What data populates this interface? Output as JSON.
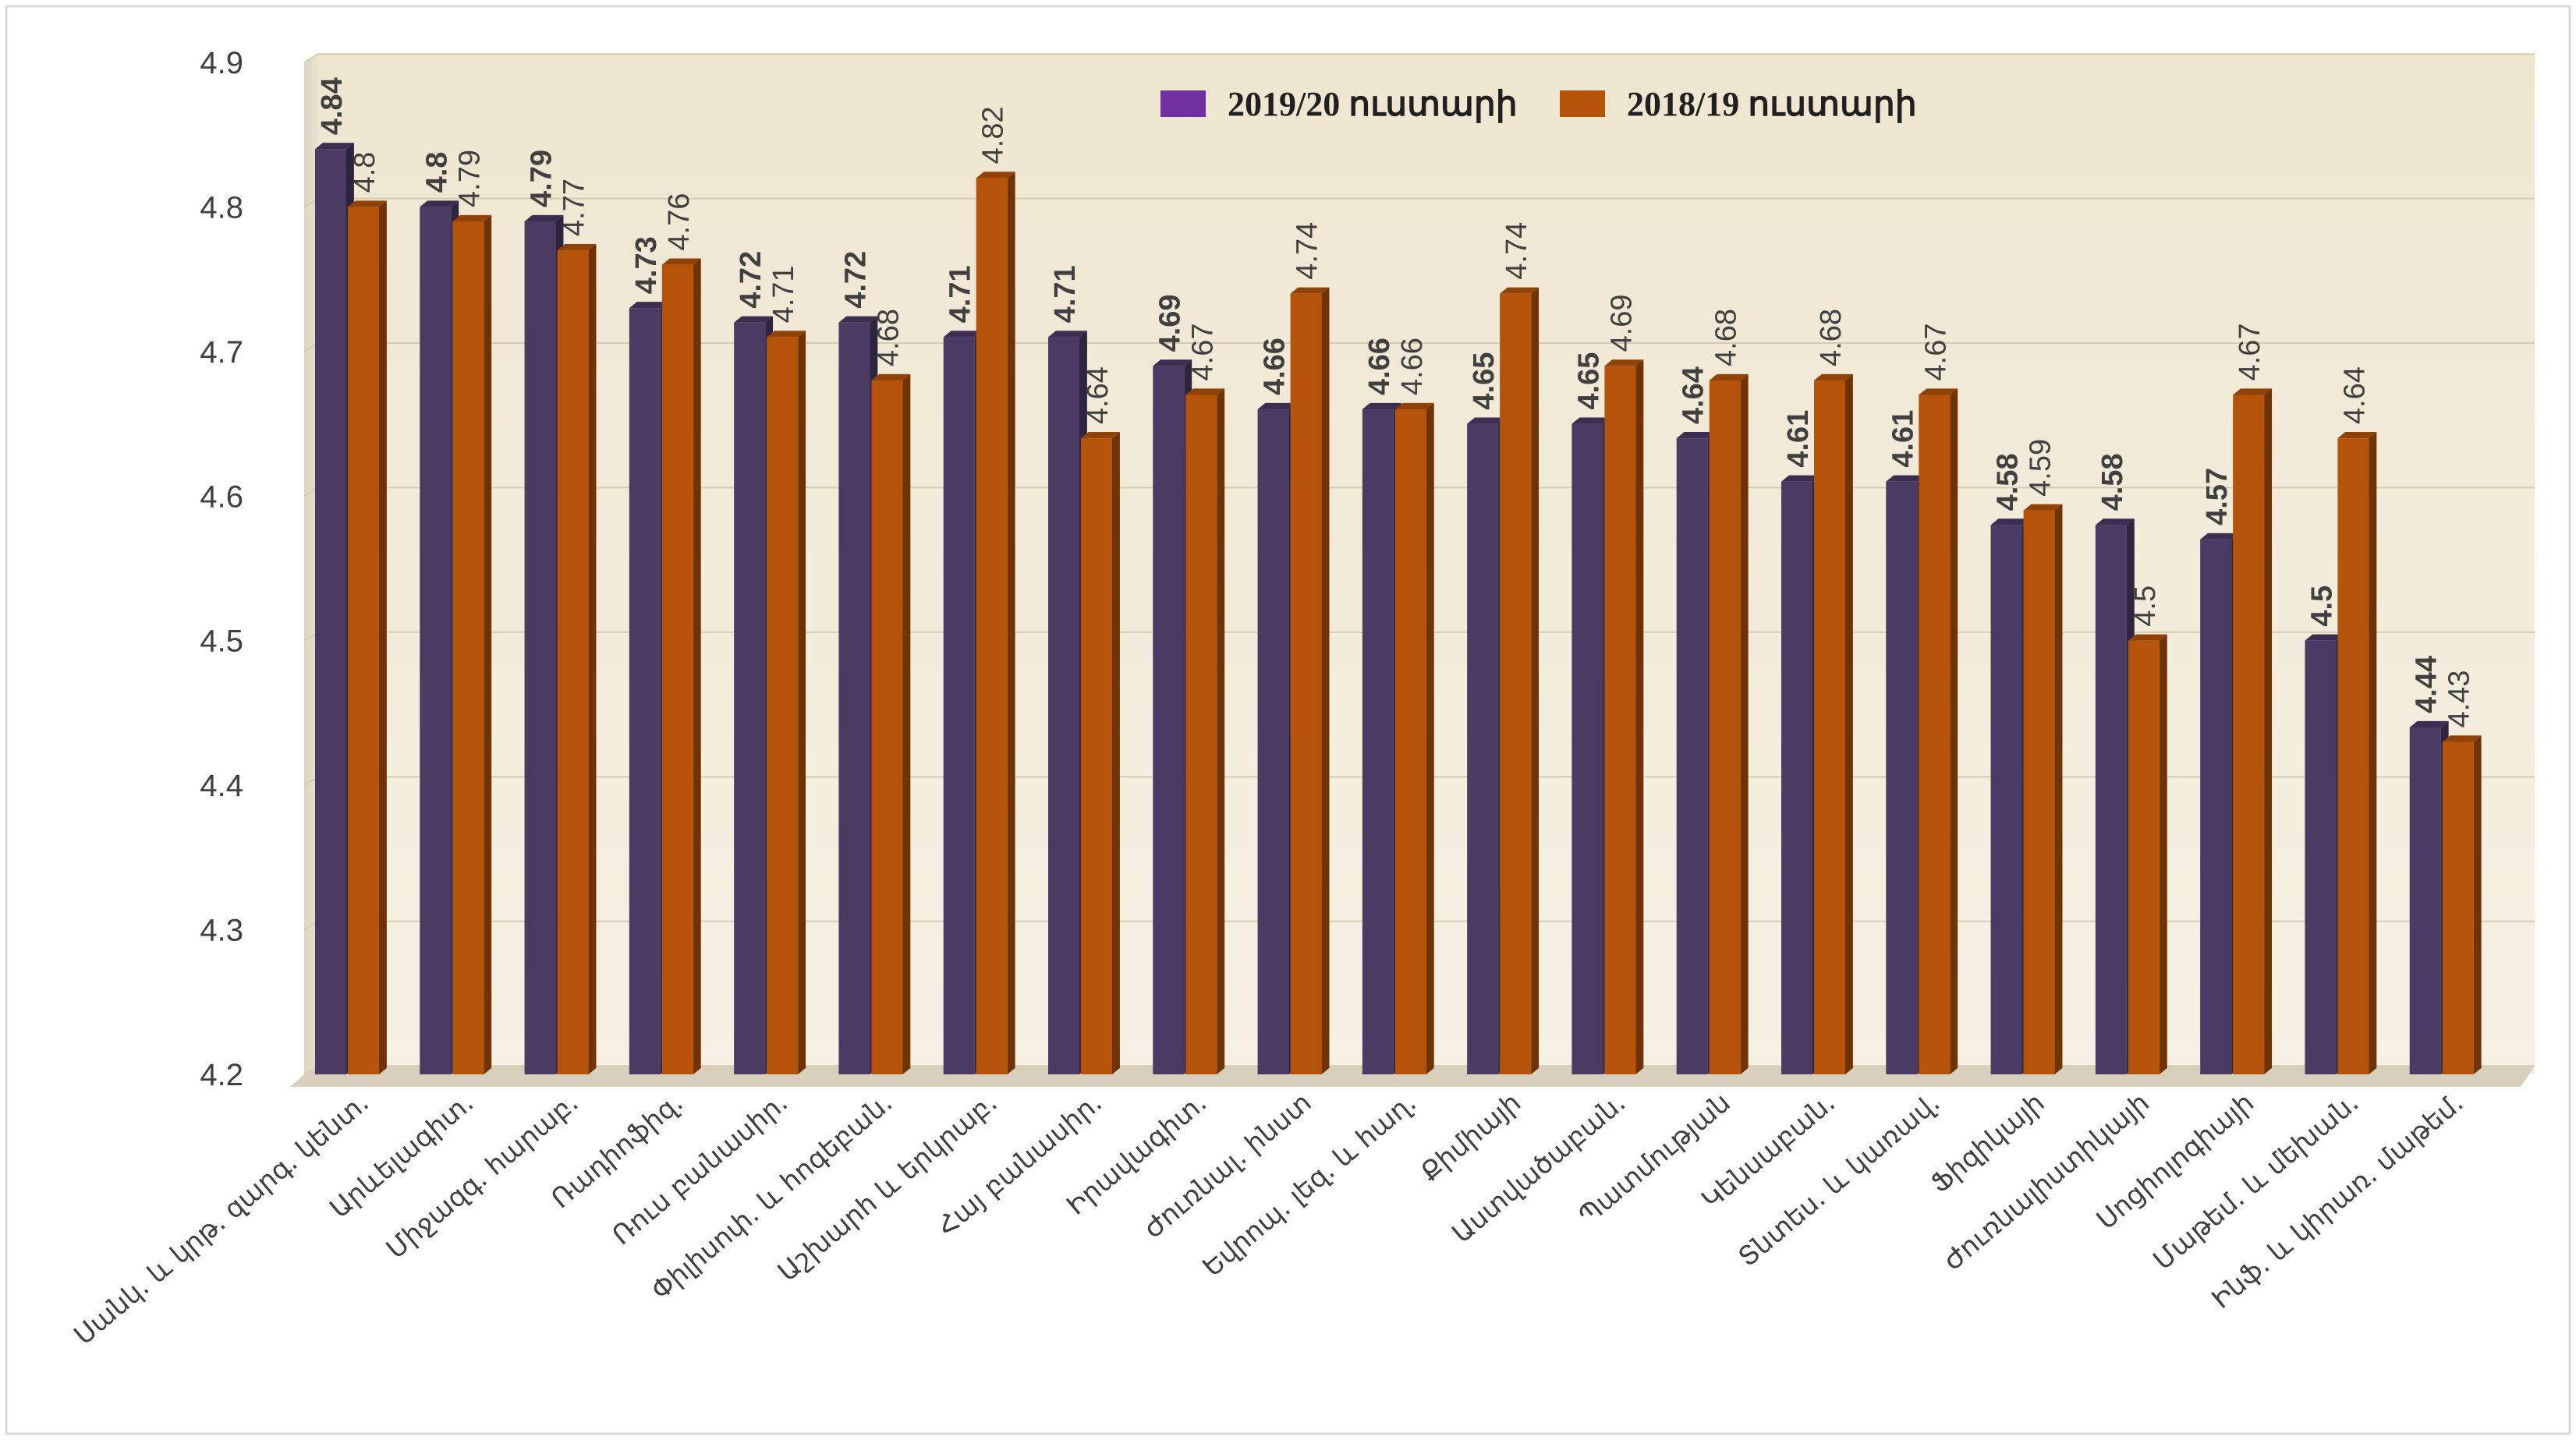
{
  "chart_data": {
    "type": "bar",
    "title": "",
    "xlabel": "",
    "ylabel": "",
    "ylim": [
      4.2,
      4.9
    ],
    "yticks": [
      "4.2",
      "4.3",
      "4.4",
      "4.5",
      "4.6",
      "4.7",
      "4.8",
      "4.9"
    ],
    "grid": true,
    "legend_position": "top-center",
    "categories": [
      "Սանկ. և կրթ. զարգ. կենտ.",
      "Արևելագիտ.",
      "Միջազգ. հարաբ.",
      "Ռադիոֆիզ.",
      "Ռուս բանասիր.",
      "Փիլիսոփ. և հոգեբան.",
      "Աշխարհ և երկրաբ.",
      "Հայ բանասիր.",
      "Իրավագիտ.",
      "Ժուռնալ. ինստ",
      "Եվրոպ. լեզ. և հաղ.",
      "Քիմիայի",
      "Աստվածաբան.",
      "Պատմության",
      "Կենսաբան.",
      "Տնտես. և կառավ.",
      "Ֆիզիկայի",
      "Ժուռնալիստիկայի",
      "Սոցիոլոգիայի",
      "Մաթեմ. և մեխան.",
      "Ինֆ. և կիրառ. մաթեմ."
    ],
    "series": [
      {
        "name": "2019/20 ուստարի",
        "color": "#4b3a64",
        "values": [
          4.84,
          4.8,
          4.79,
          4.73,
          4.72,
          4.72,
          4.71,
          4.71,
          4.69,
          4.66,
          4.66,
          4.65,
          4.65,
          4.64,
          4.61,
          4.61,
          4.58,
          4.58,
          4.57,
          4.5,
          4.44
        ]
      },
      {
        "name": "2018/19 ուստարի",
        "color": "#b45309",
        "values": [
          4.8,
          4.79,
          4.77,
          4.76,
          4.71,
          4.68,
          4.82,
          4.64,
          4.67,
          4.74,
          4.66,
          4.74,
          4.69,
          4.68,
          4.68,
          4.67,
          4.59,
          4.5,
          4.67,
          4.64,
          4.43
        ]
      }
    ],
    "legend_colors": [
      "#7030a0",
      "#b45309"
    ]
  }
}
